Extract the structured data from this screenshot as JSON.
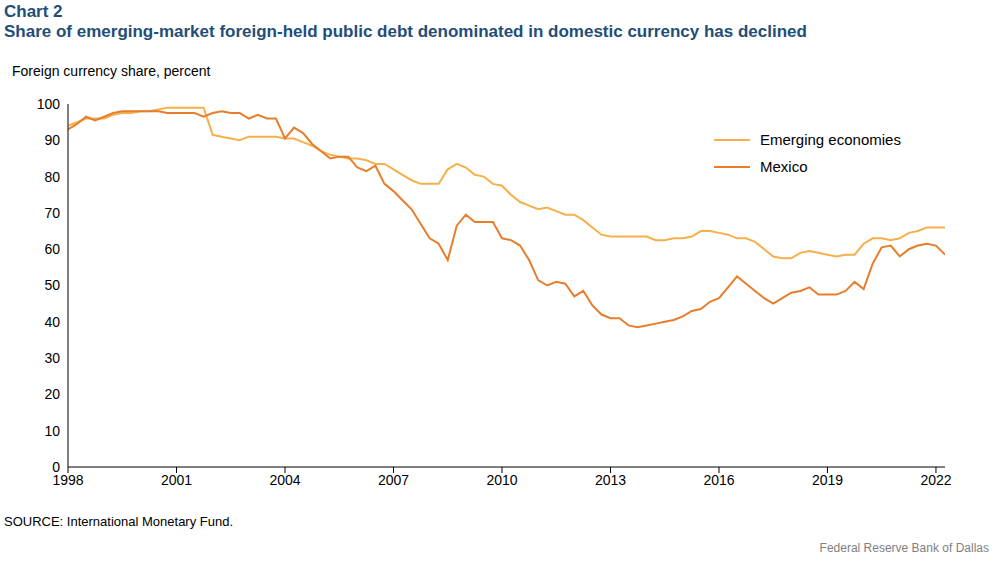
{
  "chart_data": {
    "type": "line",
    "title": "Chart 2",
    "subtitle": "Share of emerging-market foreign-held public debt denominated in domestic currency has declined",
    "y_label": "Foreign currency share, percent",
    "source": "SOURCE: International Monetary Fund.",
    "credit": "Federal Reserve Bank of Dallas",
    "x": [
      1998,
      1998.25,
      1998.5,
      1998.75,
      1999,
      1999.25,
      1999.5,
      1999.75,
      2000,
      2000.25,
      2000.5,
      2000.75,
      2001,
      2001.25,
      2001.5,
      2001.75,
      2002,
      2002.25,
      2002.5,
      2002.75,
      2003,
      2003.25,
      2003.5,
      2003.75,
      2004,
      2004.25,
      2004.5,
      2004.75,
      2005,
      2005.25,
      2005.5,
      2005.75,
      2006,
      2006.25,
      2006.5,
      2006.75,
      2007,
      2007.25,
      2007.5,
      2007.75,
      2008,
      2008.25,
      2008.5,
      2008.75,
      2009,
      2009.25,
      2009.5,
      2009.75,
      2010,
      2010.25,
      2010.5,
      2010.75,
      2011,
      2011.25,
      2011.5,
      2011.75,
      2012,
      2012.25,
      2012.5,
      2012.75,
      2013,
      2013.25,
      2013.5,
      2013.75,
      2014,
      2014.25,
      2014.5,
      2014.75,
      2015,
      2015.25,
      2015.5,
      2015.75,
      2016,
      2016.25,
      2016.5,
      2016.75,
      2017,
      2017.25,
      2017.5,
      2017.75,
      2018,
      2018.25,
      2018.5,
      2018.75,
      2019,
      2019.25,
      2019.5,
      2019.75,
      2020,
      2020.25,
      2020.5,
      2020.75,
      2021,
      2021.25,
      2021.5,
      2021.75,
      2022,
      2022.25
    ],
    "series": [
      {
        "name": "Emerging economies",
        "color": "#f6b04b",
        "values": [
          94,
          95,
          96,
          96,
          96,
          97,
          97.5,
          97.5,
          98,
          98,
          98.5,
          99,
          99,
          99,
          99,
          99,
          91.5,
          91,
          90.5,
          90,
          91,
          91,
          91,
          91,
          90.5,
          90.5,
          89.5,
          88.5,
          87,
          86,
          85.5,
          85,
          85,
          84.5,
          83.5,
          83.5,
          82,
          80.5,
          79,
          78,
          78,
          78,
          82,
          83.5,
          82.5,
          80.5,
          80,
          78,
          77.5,
          75,
          73,
          72,
          71,
          71.5,
          70.5,
          69.5,
          69.5,
          68,
          66,
          64,
          63.5,
          63.5,
          63.5,
          63.5,
          63.5,
          62.5,
          62.5,
          63,
          63,
          63.5,
          65,
          65,
          64.5,
          64,
          63,
          63,
          62,
          60,
          58,
          57.5,
          57.5,
          59,
          59.5,
          59,
          58.5,
          58,
          58.5,
          58.5,
          61.5,
          63,
          63,
          62.5,
          63,
          64.5,
          65,
          66,
          66,
          66
        ]
      },
      {
        "name": "Mexico",
        "color": "#e87d2c",
        "values": [
          93,
          94.5,
          96.5,
          95.5,
          96.5,
          97.5,
          98,
          98,
          98,
          98,
          98,
          97.5,
          97.5,
          97.5,
          97.5,
          96.5,
          97.5,
          98,
          97.5,
          97.5,
          96,
          97,
          96,
          96,
          90.5,
          93.5,
          92,
          89,
          87,
          85,
          85.5,
          85.5,
          82.5,
          81.5,
          83,
          78,
          76,
          73.5,
          71,
          67,
          63,
          61.5,
          57,
          66.5,
          69.5,
          67.5,
          67.5,
          67.5,
          63,
          62.5,
          61,
          57,
          51.5,
          50,
          51,
          50.5,
          47,
          48.5,
          44.5,
          42,
          41,
          41,
          39,
          38.5,
          39,
          39.5,
          40,
          40.5,
          41.5,
          43,
          43.5,
          45.5,
          46.5,
          49.5,
          52.5,
          50.5,
          48.5,
          46.5,
          45,
          46.5,
          48,
          48.5,
          49.5,
          47.5,
          47.5,
          47.5,
          48.5,
          51,
          49,
          56,
          60.5,
          61,
          58,
          60,
          61,
          61.5,
          61,
          58.5
        ]
      }
    ],
    "xlim": [
      1998,
      2022.25
    ],
    "xticks": [
      1998,
      2001,
      2004,
      2007,
      2010,
      2013,
      2016,
      2019,
      2022
    ],
    "ylim": [
      0,
      100
    ],
    "yticks": [
      0,
      10,
      20,
      30,
      40,
      50,
      60,
      70,
      80,
      90,
      100
    ],
    "grid": false,
    "legend": "upper right"
  }
}
